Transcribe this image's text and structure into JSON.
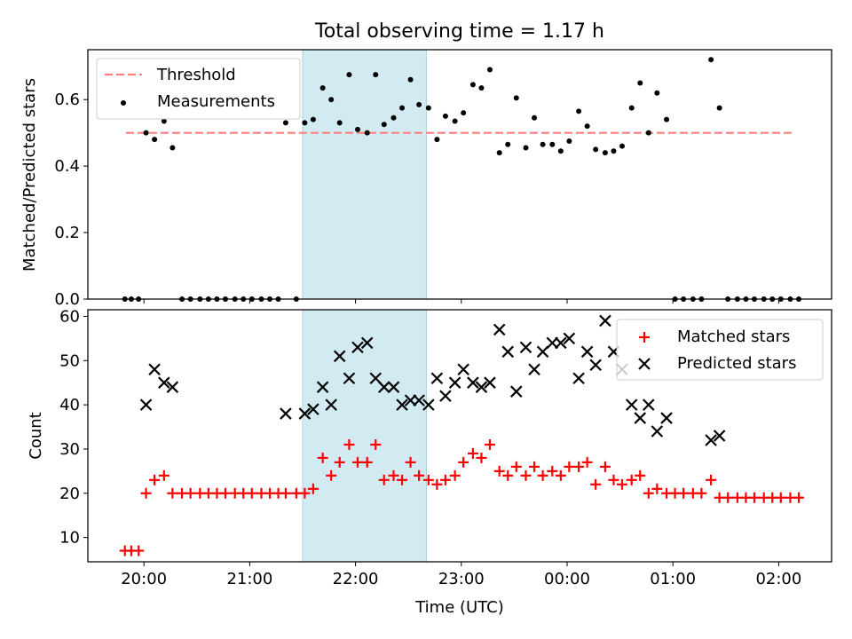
{
  "figure": {
    "title": "Total observing time = 1.17 h",
    "xlabel": "Time (UTC)",
    "x_ticks": [
      {
        "value": 20.0,
        "label": "20:00"
      },
      {
        "value": 21.0,
        "label": "21:00"
      },
      {
        "value": 22.0,
        "label": "22:00"
      },
      {
        "value": 23.0,
        "label": "23:00"
      },
      {
        "value": 24.0,
        "label": "00:00"
      },
      {
        "value": 25.0,
        "label": "01:00"
      },
      {
        "value": 26.0,
        "label": "02:00"
      }
    ],
    "x_unit": "hours UTC (values after midnight continue past 24:00)",
    "xlim": [
      19.47,
      26.5
    ],
    "highlight_span": {
      "from": 21.5,
      "to": 22.67,
      "color": "#add8e6"
    }
  },
  "chart_data": [
    {
      "type": "scatter",
      "id": "ratio",
      "ylabel": "Matched/Predicted stars",
      "ylim": [
        0,
        0.75
      ],
      "y_ticks": [
        0.0,
        0.2,
        0.4,
        0.6
      ],
      "y_tick_labels": [
        "0.0",
        "0.2",
        "0.4",
        "0.6"
      ],
      "legend": {
        "placement": "upper-left"
      },
      "threshold": {
        "name": "Threshold",
        "value": 0.5,
        "x_from": 19.83,
        "x_to": 26.13,
        "color": "#ff7f7f"
      },
      "series": [
        {
          "name": "Measurements",
          "color": "#000000",
          "marker": "dot",
          "points": [
            [
              19.82,
              0
            ],
            [
              19.88,
              0
            ],
            [
              19.95,
              0
            ],
            [
              20.02,
              0.5
            ],
            [
              20.1,
              0.48
            ],
            [
              20.19,
              0.535
            ],
            [
              20.27,
              0.455
            ],
            [
              20.36,
              0
            ],
            [
              20.44,
              0
            ],
            [
              20.53,
              0
            ],
            [
              20.61,
              0
            ],
            [
              20.69,
              0
            ],
            [
              20.77,
              0
            ],
            [
              20.86,
              0
            ],
            [
              20.94,
              0
            ],
            [
              21.02,
              0
            ],
            [
              21.11,
              0
            ],
            [
              21.19,
              0
            ],
            [
              21.27,
              0
            ],
            [
              21.34,
              0.53
            ],
            [
              21.44,
              0
            ],
            [
              21.52,
              0.53
            ],
            [
              21.6,
              0.54
            ],
            [
              21.69,
              0.635
            ],
            [
              21.77,
              0.6
            ],
            [
              21.85,
              0.53
            ],
            [
              21.94,
              0.675
            ],
            [
              22.02,
              0.51
            ],
            [
              22.11,
              0.5
            ],
            [
              22.19,
              0.675
            ],
            [
              22.27,
              0.525
            ],
            [
              22.36,
              0.545
            ],
            [
              22.44,
              0.575
            ],
            [
              22.52,
              0.66
            ],
            [
              22.6,
              0.585
            ],
            [
              22.69,
              0.575
            ],
            [
              22.77,
              0.48
            ],
            [
              22.85,
              0.55
            ],
            [
              22.94,
              0.535
            ],
            [
              23.02,
              0.56
            ],
            [
              23.11,
              0.645
            ],
            [
              23.19,
              0.635
            ],
            [
              23.27,
              0.69
            ],
            [
              23.36,
              0.44
            ],
            [
              23.44,
              0.465
            ],
            [
              23.52,
              0.605
            ],
            [
              23.61,
              0.455
            ],
            [
              23.69,
              0.545
            ],
            [
              23.77,
              0.465
            ],
            [
              23.86,
              0.465
            ],
            [
              23.94,
              0.445
            ],
            [
              24.02,
              0.475
            ],
            [
              24.11,
              0.565
            ],
            [
              24.19,
              0.52
            ],
            [
              24.27,
              0.45
            ],
            [
              24.36,
              0.44
            ],
            [
              24.44,
              0.445
            ],
            [
              24.52,
              0.46
            ],
            [
              24.61,
              0.575
            ],
            [
              24.69,
              0.65
            ],
            [
              24.77,
              0.5
            ],
            [
              24.85,
              0.62
            ],
            [
              24.94,
              0.54
            ],
            [
              25.02,
              0
            ],
            [
              25.1,
              0
            ],
            [
              25.19,
              0
            ],
            [
              25.27,
              0
            ],
            [
              25.36,
              0.72
            ],
            [
              25.44,
              0.575
            ],
            [
              25.52,
              0
            ],
            [
              25.61,
              0
            ],
            [
              25.69,
              0
            ],
            [
              25.77,
              0
            ],
            [
              25.86,
              0
            ],
            [
              25.94,
              0
            ],
            [
              26.02,
              0
            ],
            [
              26.11,
              0
            ],
            [
              26.19,
              0
            ]
          ]
        }
      ]
    },
    {
      "type": "scatter",
      "id": "counts",
      "ylabel": "Count",
      "ylim": [
        4.5,
        61.5
      ],
      "y_ticks": [
        10,
        20,
        30,
        40,
        50,
        60
      ],
      "y_tick_labels": [
        "10",
        "20",
        "30",
        "40",
        "50",
        "60"
      ],
      "legend": {
        "placement": "upper-right"
      },
      "series": [
        {
          "name": "Matched stars",
          "color": "#ff0000",
          "marker": "plus",
          "points": [
            [
              19.82,
              7
            ],
            [
              19.88,
              7
            ],
            [
              19.95,
              7
            ],
            [
              20.02,
              20
            ],
            [
              20.1,
              23
            ],
            [
              20.19,
              24
            ],
            [
              20.27,
              20
            ],
            [
              20.36,
              20
            ],
            [
              20.44,
              20
            ],
            [
              20.53,
              20
            ],
            [
              20.61,
              20
            ],
            [
              20.69,
              20
            ],
            [
              20.77,
              20
            ],
            [
              20.86,
              20
            ],
            [
              20.94,
              20
            ],
            [
              21.02,
              20
            ],
            [
              21.11,
              20
            ],
            [
              21.19,
              20
            ],
            [
              21.27,
              20
            ],
            [
              21.34,
              20
            ],
            [
              21.44,
              20
            ],
            [
              21.52,
              20
            ],
            [
              21.6,
              21
            ],
            [
              21.69,
              28
            ],
            [
              21.77,
              24
            ],
            [
              21.85,
              27
            ],
            [
              21.94,
              31
            ],
            [
              22.02,
              27
            ],
            [
              22.11,
              27
            ],
            [
              22.19,
              31
            ],
            [
              22.27,
              23
            ],
            [
              22.36,
              24
            ],
            [
              22.44,
              23
            ],
            [
              22.52,
              27
            ],
            [
              22.6,
              24
            ],
            [
              22.69,
              23
            ],
            [
              22.77,
              22
            ],
            [
              22.85,
              23
            ],
            [
              22.94,
              24
            ],
            [
              23.02,
              27
            ],
            [
              23.11,
              29
            ],
            [
              23.19,
              28
            ],
            [
              23.27,
              31
            ],
            [
              23.36,
              25
            ],
            [
              23.44,
              24
            ],
            [
              23.52,
              26
            ],
            [
              23.61,
              24
            ],
            [
              23.69,
              26
            ],
            [
              23.77,
              24
            ],
            [
              23.86,
              25
            ],
            [
              23.94,
              24
            ],
            [
              24.02,
              26
            ],
            [
              24.11,
              26
            ],
            [
              24.19,
              27
            ],
            [
              24.27,
              22
            ],
            [
              24.36,
              26
            ],
            [
              24.44,
              23
            ],
            [
              24.52,
              22
            ],
            [
              24.61,
              23
            ],
            [
              24.69,
              24
            ],
            [
              24.77,
              20
            ],
            [
              24.85,
              21
            ],
            [
              24.94,
              20
            ],
            [
              25.02,
              20
            ],
            [
              25.1,
              20
            ],
            [
              25.19,
              20
            ],
            [
              25.27,
              20
            ],
            [
              25.36,
              23
            ],
            [
              25.44,
              19
            ],
            [
              25.52,
              19
            ],
            [
              25.61,
              19
            ],
            [
              25.69,
              19
            ],
            [
              25.77,
              19
            ],
            [
              25.86,
              19
            ],
            [
              25.94,
              19
            ],
            [
              26.02,
              19
            ],
            [
              26.11,
              19
            ],
            [
              26.19,
              19
            ]
          ]
        },
        {
          "name": "Predicted stars",
          "color": "#000000",
          "marker": "x",
          "points": [
            [
              20.02,
              40
            ],
            [
              20.1,
              48
            ],
            [
              20.19,
              45
            ],
            [
              20.27,
              44
            ],
            [
              21.34,
              38
            ],
            [
              21.52,
              38
            ],
            [
              21.6,
              39
            ],
            [
              21.69,
              44
            ],
            [
              21.77,
              40
            ],
            [
              21.85,
              51
            ],
            [
              21.94,
              46
            ],
            [
              22.02,
              53
            ],
            [
              22.11,
              54
            ],
            [
              22.19,
              46
            ],
            [
              22.27,
              44
            ],
            [
              22.36,
              44
            ],
            [
              22.44,
              40
            ],
            [
              22.52,
              41
            ],
            [
              22.6,
              41
            ],
            [
              22.69,
              40
            ],
            [
              22.77,
              46
            ],
            [
              22.85,
              42
            ],
            [
              22.94,
              45
            ],
            [
              23.02,
              48
            ],
            [
              23.11,
              45
            ],
            [
              23.19,
              44
            ],
            [
              23.27,
              45
            ],
            [
              23.36,
              57
            ],
            [
              23.44,
              52
            ],
            [
              23.52,
              43
            ],
            [
              23.61,
              53
            ],
            [
              23.69,
              48
            ],
            [
              23.77,
              52
            ],
            [
              23.86,
              54
            ],
            [
              23.94,
              54
            ],
            [
              24.02,
              55
            ],
            [
              24.11,
              46
            ],
            [
              24.19,
              52
            ],
            [
              24.27,
              49
            ],
            [
              24.36,
              59
            ],
            [
              24.44,
              52
            ],
            [
              24.52,
              48
            ],
            [
              24.61,
              40
            ],
            [
              24.69,
              37
            ],
            [
              24.77,
              40
            ],
            [
              24.85,
              34
            ],
            [
              24.94,
              37
            ],
            [
              25.36,
              32
            ],
            [
              25.44,
              33
            ]
          ]
        }
      ]
    }
  ]
}
